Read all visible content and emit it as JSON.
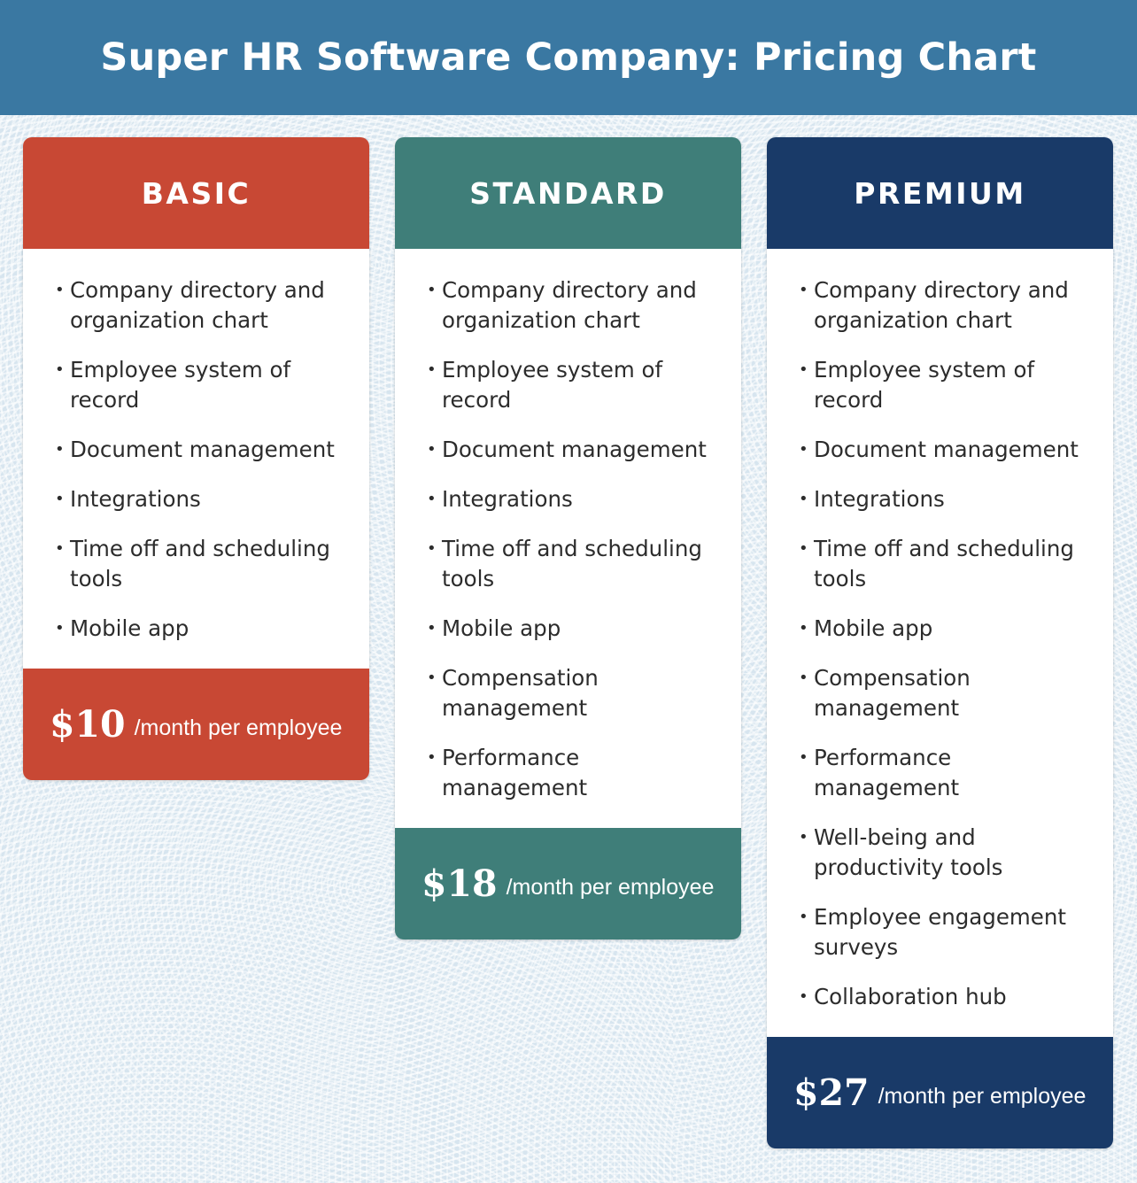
{
  "title": "Super HR Software Company: Pricing Chart",
  "colors": {
    "header": "#3a78a2",
    "basic": "#c84834",
    "standard": "#3f7e79",
    "premium": "#193a68",
    "background": "#d7e5ef"
  },
  "plans": [
    {
      "name": "BASIC",
      "features": [
        "Company directory and organization chart",
        "Employee system of record",
        "Document management",
        "Integrations",
        "Time off and scheduling tools",
        "Mobile app"
      ],
      "price": "$10",
      "unit": "/month per employee"
    },
    {
      "name": "STANDARD",
      "features": [
        "Company directory and organization chart",
        "Employee system of record",
        "Document management",
        "Integrations",
        "Time off and scheduling tools",
        "Mobile app",
        "Compensation management",
        "Performance management"
      ],
      "price": "$18",
      "unit": "/month per employee"
    },
    {
      "name": "PREMIUM",
      "features": [
        "Company directory and organization chart",
        "Employee system of record",
        "Document management",
        "Integrations",
        "Time off and scheduling tools",
        "Mobile app",
        "Compensation management",
        "Performance management",
        "Well-being and productivity tools",
        "Employee engagement surveys",
        "Collaboration hub"
      ],
      "price": "$27",
      "unit": "/month per employee"
    }
  ]
}
